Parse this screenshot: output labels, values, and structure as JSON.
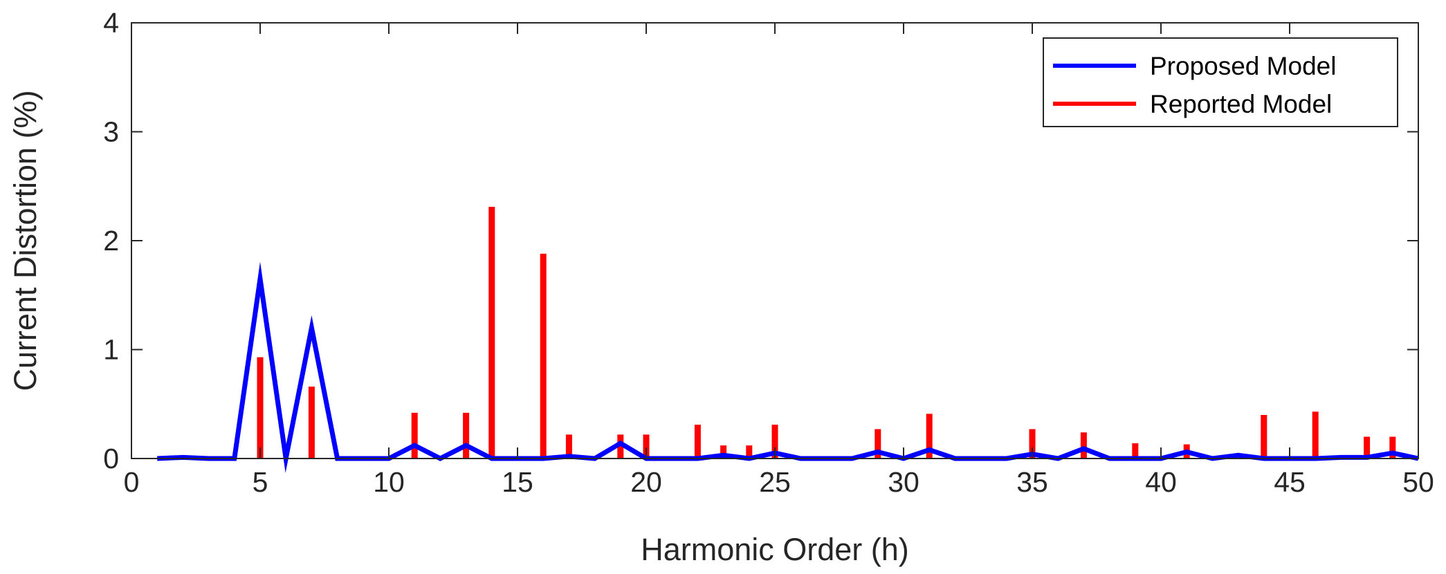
{
  "chart_data": {
    "type": "line",
    "xlabel": "Harmonic Order (h)",
    "ylabel": "Current Distortion (%)",
    "xlim": [
      0,
      50
    ],
    "ylim": [
      0,
      4
    ],
    "xticks": [
      0,
      5,
      10,
      15,
      20,
      25,
      30,
      35,
      40,
      45,
      50
    ],
    "yticks": [
      0,
      1,
      2,
      3,
      4
    ],
    "grid": false,
    "legend_position": "top-right",
    "series": [
      {
        "name": "Proposed Model",
        "type": "line",
        "color": "#0000ff",
        "x": [
          1,
          2,
          3,
          4,
          5,
          6,
          7,
          8,
          9,
          10,
          11,
          12,
          13,
          14,
          15,
          16,
          17,
          18,
          19,
          20,
          21,
          22,
          23,
          24,
          25,
          26,
          27,
          28,
          29,
          30,
          31,
          32,
          33,
          34,
          35,
          36,
          37,
          38,
          39,
          40,
          41,
          42,
          43,
          44,
          45,
          46,
          47,
          48,
          49,
          50
        ],
        "y": [
          0,
          0.01,
          0,
          0,
          1.65,
          0,
          1.2,
          0,
          0,
          0,
          0.12,
          0,
          0.12,
          0,
          0,
          0,
          0.02,
          0,
          0.14,
          0,
          0,
          0,
          0.03,
          0,
          0.05,
          0,
          0,
          0,
          0.06,
          0,
          0.08,
          0,
          0,
          0,
          0.04,
          0,
          0.09,
          0,
          0,
          0,
          0.06,
          0,
          0.03,
          0,
          0,
          0,
          0.01,
          0.01,
          0.05,
          0
        ]
      },
      {
        "name": "Reported Model",
        "type": "stem",
        "color": "#ff0000",
        "x": [
          5,
          7,
          11,
          13,
          14,
          16,
          17,
          19,
          20,
          22,
          23,
          24,
          25,
          29,
          31,
          35,
          37,
          39,
          41,
          44,
          46,
          48,
          49
        ],
        "y": [
          0.93,
          0.66,
          0.42,
          0.42,
          2.31,
          1.88,
          0.22,
          0.22,
          0.22,
          0.31,
          0.12,
          0.12,
          0.31,
          0.27,
          0.41,
          0.27,
          0.24,
          0.14,
          0.13,
          0.4,
          0.43,
          0.2,
          0.2
        ]
      }
    ]
  }
}
